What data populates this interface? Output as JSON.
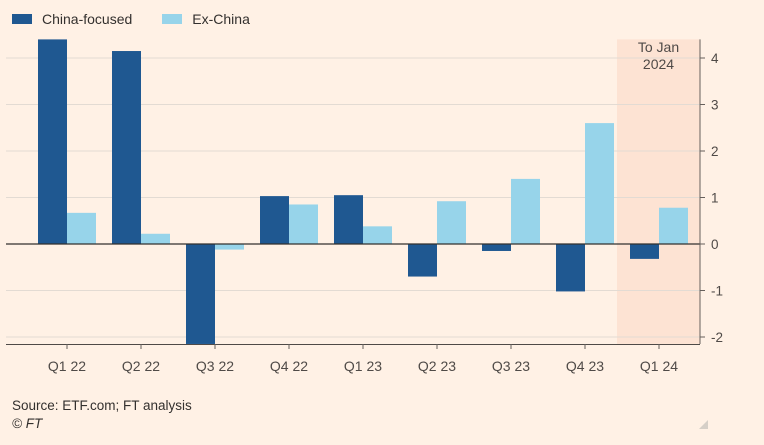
{
  "chart_data": {
    "type": "bar",
    "categories": [
      "Q1 22",
      "Q2 22",
      "Q3 22",
      "Q4 22",
      "Q1 23",
      "Q2 23",
      "Q3 23",
      "Q4 23",
      "Q1 24"
    ],
    "series": [
      {
        "name": "China-focused",
        "color": "#1f5891",
        "values": [
          4.4,
          4.15,
          -2.15,
          1.03,
          1.05,
          -0.7,
          -0.15,
          -1.02,
          -0.32
        ]
      },
      {
        "name": "Ex-China",
        "color": "#97d4ea",
        "values": [
          0.67,
          0.22,
          -0.12,
          0.85,
          0.38,
          0.92,
          1.4,
          2.6,
          0.78
        ]
      }
    ],
    "yticks": [
      4,
      3,
      2,
      1,
      0,
      -1,
      -2
    ],
    "ylim": [
      -2.15,
      4.4
    ],
    "highlight": {
      "category": "Q1 24",
      "label_lines": [
        "To Jan",
        "2024"
      ],
      "color": "#fde3d3"
    },
    "grid": true,
    "y_axis_position": "right",
    "legend_position": "top-left"
  },
  "footer": {
    "source": "Source: ETF.com; FT analysis",
    "credit": "© FT"
  },
  "colors": {
    "background": "#fff1e5",
    "grid": "#e3dbd3",
    "axis": "#66605c"
  }
}
